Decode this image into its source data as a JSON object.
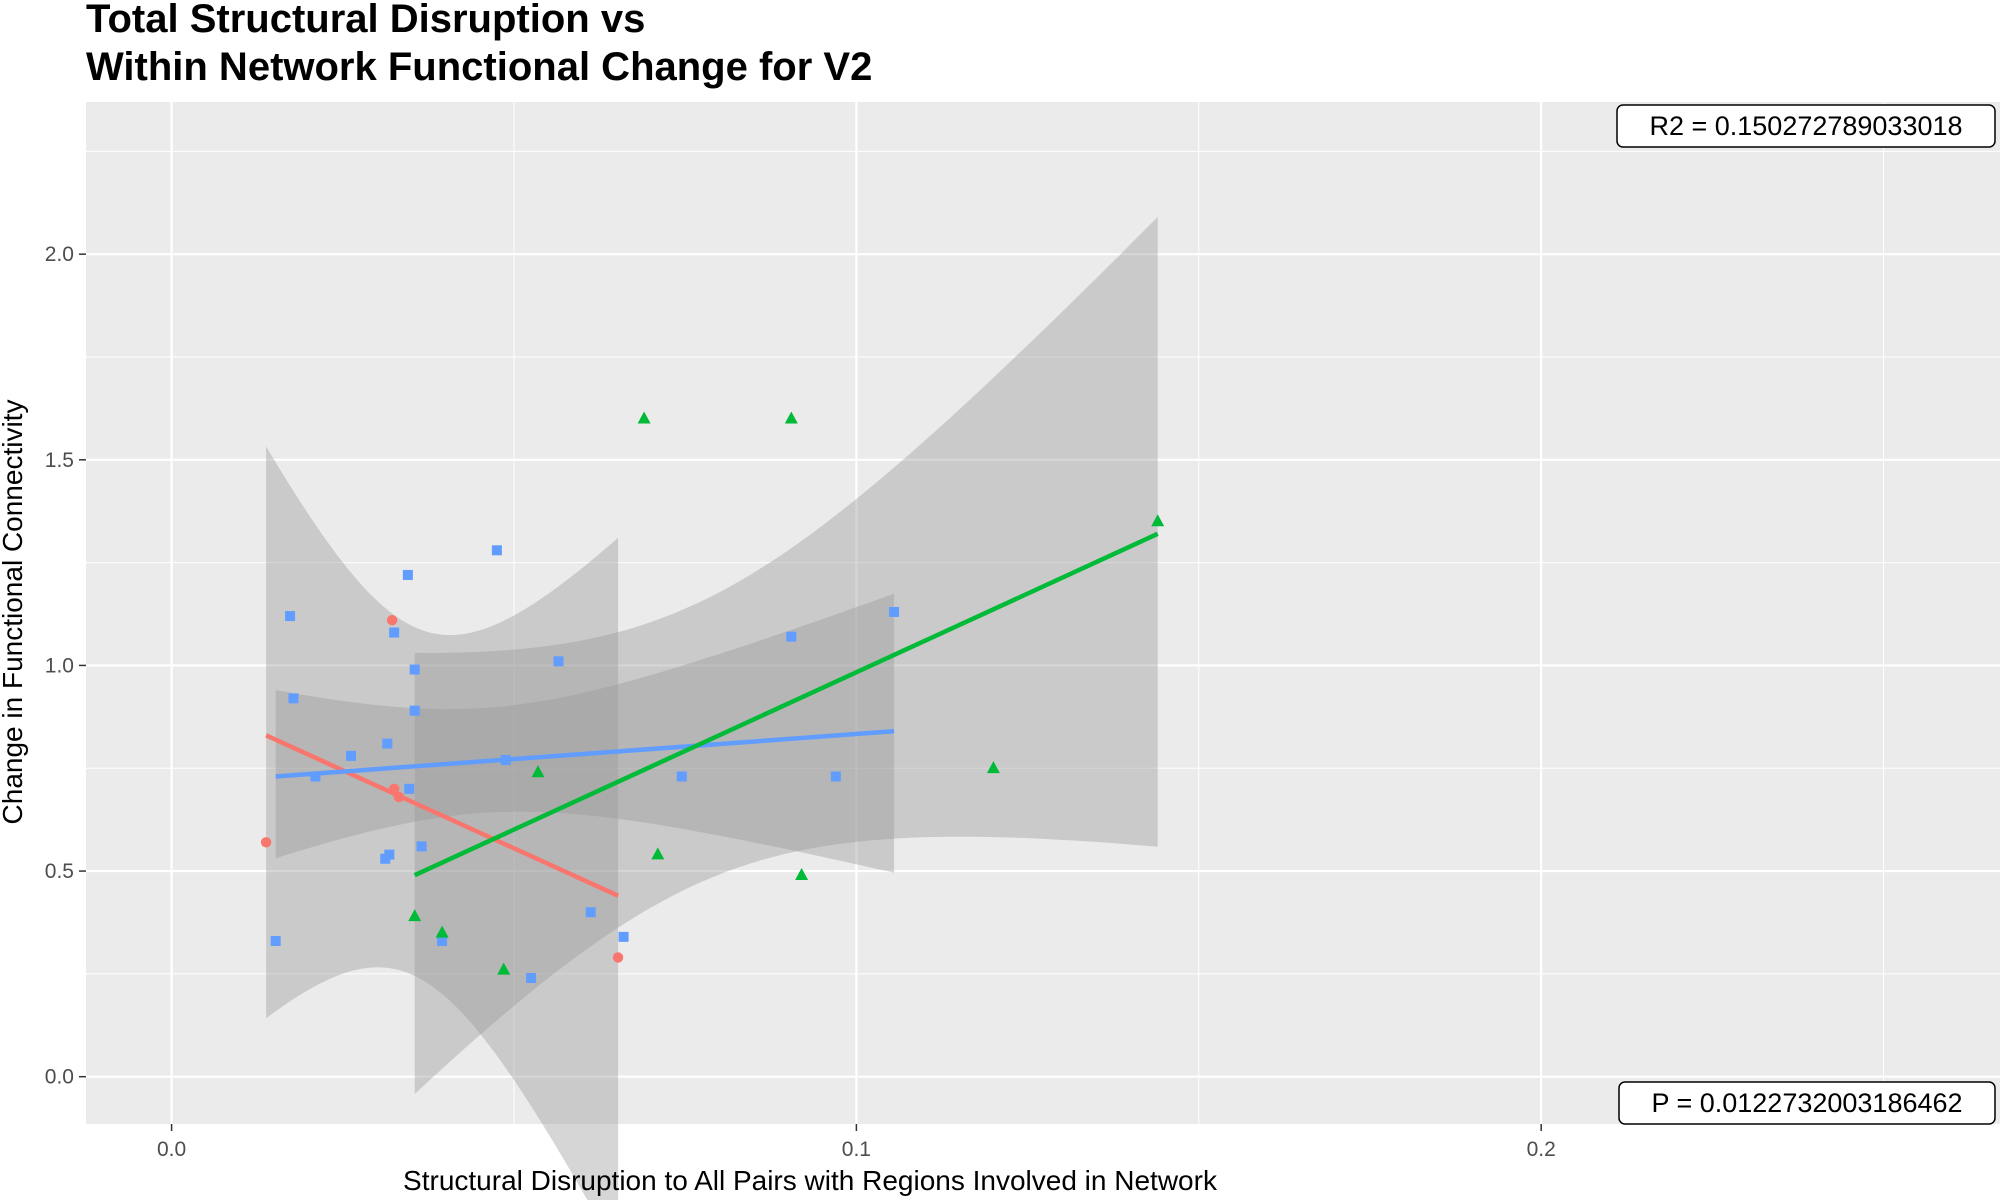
{
  "chart_data": {
    "type": "scatter",
    "title_lines": [
      "Total Structural Disruption vs",
      "Within Network Functional Change for V2"
    ],
    "xlabel": "Structural Disruption to All Pairs with Regions Involved in Network",
    "ylabel": "Change in Functional Connectivity",
    "xlim": [
      -0.0125,
      0.267
    ],
    "ylim": [
      -0.115,
      2.37
    ],
    "x_ticks": [
      0.0,
      0.1,
      0.2
    ],
    "x_tick_labels": [
      "0.0",
      "0.1",
      "0.2"
    ],
    "y_ticks": [
      0.0,
      0.5,
      1.0,
      1.5,
      2.0
    ],
    "y_tick_labels": [
      "0.0",
      "0.5",
      "1.0",
      "1.5",
      "2.0"
    ],
    "grid": true,
    "background": "#ebebeb",
    "annotations": [
      {
        "label": "R2 =  0.150272789033018",
        "position": "top-right"
      },
      {
        "label": "P =  0.0122732003186462",
        "position": "bottom-right"
      }
    ],
    "series": [
      {
        "color": "#f8766d",
        "marker": "circle",
        "points": [
          {
            "x": 0.0138,
            "y": 0.57
          },
          {
            "x": 0.0322,
            "y": 1.11
          },
          {
            "x": 0.0332,
            "y": 0.68
          },
          {
            "x": 0.0325,
            "y": 0.7
          },
          {
            "x": 0.0652,
            "y": 0.29
          }
        ],
        "fit": {
          "x": [
            0.0138,
            0.0652
          ],
          "y": [
            0.83,
            0.44
          ]
        }
      },
      {
        "color": "#619cff",
        "marker": "square",
        "points": [
          {
            "x": 0.0152,
            "y": 0.33
          },
          {
            "x": 0.0173,
            "y": 1.12
          },
          {
            "x": 0.0178,
            "y": 0.92
          },
          {
            "x": 0.021,
            "y": 0.73
          },
          {
            "x": 0.0262,
            "y": 0.78
          },
          {
            "x": 0.0315,
            "y": 0.81
          },
          {
            "x": 0.0318,
            "y": 0.54
          },
          {
            "x": 0.0312,
            "y": 0.53
          },
          {
            "x": 0.0325,
            "y": 1.08
          },
          {
            "x": 0.0345,
            "y": 1.22
          },
          {
            "x": 0.0347,
            "y": 0.7
          },
          {
            "x": 0.0355,
            "y": 0.99
          },
          {
            "x": 0.0355,
            "y": 0.89
          },
          {
            "x": 0.0365,
            "y": 0.56
          },
          {
            "x": 0.0395,
            "y": 0.33
          },
          {
            "x": 0.0475,
            "y": 1.28
          },
          {
            "x": 0.0488,
            "y": 0.77
          },
          {
            "x": 0.0525,
            "y": 0.24
          },
          {
            "x": 0.0565,
            "y": 1.01
          },
          {
            "x": 0.0612,
            "y": 0.4
          },
          {
            "x": 0.066,
            "y": 0.34
          },
          {
            "x": 0.0745,
            "y": 0.73
          },
          {
            "x": 0.0905,
            "y": 1.07
          },
          {
            "x": 0.097,
            "y": 0.73
          },
          {
            "x": 0.1055,
            "y": 1.13
          }
        ],
        "fit": {
          "x": [
            0.0152,
            0.1055
          ],
          "y": [
            0.73,
            0.84
          ]
        }
      },
      {
        "color": "#00ba38",
        "marker": "triangle",
        "points": [
          {
            "x": 0.0355,
            "y": 0.39
          },
          {
            "x": 0.0395,
            "y": 0.35
          },
          {
            "x": 0.0485,
            "y": 0.26
          },
          {
            "x": 0.0535,
            "y": 0.74
          },
          {
            "x": 0.069,
            "y": 1.6
          },
          {
            "x": 0.071,
            "y": 0.54
          },
          {
            "x": 0.0905,
            "y": 1.6
          },
          {
            "x": 0.092,
            "y": 0.49
          },
          {
            "x": 0.12,
            "y": 0.75
          },
          {
            "x": 0.144,
            "y": 1.35
          }
        ],
        "fit": {
          "x": [
            0.0355,
            0.144
          ],
          "y": [
            0.49,
            1.32
          ]
        }
      }
    ]
  }
}
